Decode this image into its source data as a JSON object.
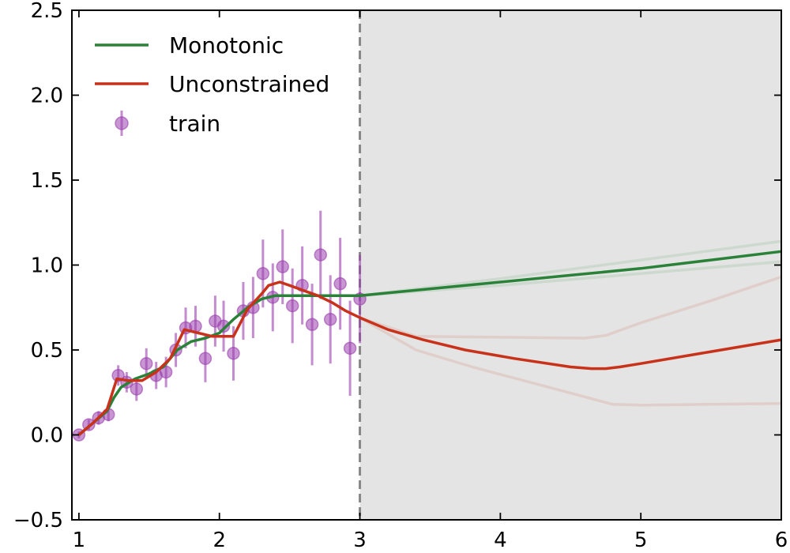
{
  "chart_data": {
    "type": "line",
    "xlim": [
      0.95,
      6.0
    ],
    "ylim": [
      -0.5,
      2.5
    ],
    "xticks": [
      "1",
      "2",
      "3",
      "4",
      "5",
      "6"
    ],
    "yticks": [
      "−0.5",
      "0.0",
      "0.5",
      "1.0",
      "1.5",
      "2.0",
      "2.5"
    ],
    "xtick_values": [
      1,
      2,
      3,
      4,
      5,
      6
    ],
    "ytick_values": [
      -0.5,
      0.0,
      0.5,
      1.0,
      1.5,
      2.0,
      2.5
    ],
    "training_boundary_x": 3.0,
    "extrapolation_shaded_region": [
      3.0,
      6.0
    ],
    "legend_placement": "top-left",
    "colors": {
      "monotonic": "#2a8138",
      "unconstrained": "#c9321a",
      "train": "#9b3fae",
      "shade": "#e4e4e4",
      "boundary": "#888888"
    },
    "series": [
      {
        "name": "Monotonic",
        "x": [
          1.0,
          1.1,
          1.2,
          1.25,
          1.3,
          1.4,
          1.5,
          1.6,
          1.7,
          1.8,
          1.9,
          2.0,
          2.1,
          2.2,
          2.3,
          2.4,
          2.5,
          2.6,
          2.7,
          2.8,
          2.9,
          3.0,
          3.5,
          4.0,
          4.5,
          5.0,
          5.5,
          6.0
        ],
        "y": [
          0.0,
          0.07,
          0.14,
          0.22,
          0.28,
          0.33,
          0.36,
          0.4,
          0.5,
          0.55,
          0.57,
          0.6,
          0.68,
          0.75,
          0.8,
          0.82,
          0.82,
          0.82,
          0.82,
          0.82,
          0.82,
          0.82,
          0.86,
          0.9,
          0.94,
          0.98,
          1.03,
          1.08
        ]
      },
      {
        "name": "Unconstrained",
        "x": [
          1.0,
          1.1,
          1.2,
          1.27,
          1.35,
          1.45,
          1.55,
          1.65,
          1.75,
          1.85,
          1.95,
          2.1,
          2.2,
          2.3,
          2.35,
          2.43,
          2.5,
          2.6,
          2.7,
          2.8,
          2.9,
          3.0,
          3.2,
          3.45,
          3.75,
          4.1,
          4.5,
          4.65,
          4.75,
          4.85,
          5.0,
          5.5,
          6.0
        ],
        "y": [
          0.0,
          0.07,
          0.15,
          0.33,
          0.32,
          0.32,
          0.37,
          0.45,
          0.62,
          0.6,
          0.58,
          0.58,
          0.74,
          0.83,
          0.88,
          0.9,
          0.88,
          0.85,
          0.82,
          0.78,
          0.73,
          0.69,
          0.62,
          0.56,
          0.5,
          0.45,
          0.4,
          0.39,
          0.39,
          0.4,
          0.42,
          0.49,
          0.56
        ]
      }
    ],
    "faint_series": [
      {
        "color": "#2a8138",
        "x": [
          3.0,
          4.0,
          5.0,
          6.0
        ],
        "y": [
          0.82,
          0.92,
          1.03,
          1.14
        ]
      },
      {
        "color": "#2a8138",
        "x": [
          3.0,
          4.0,
          5.0,
          6.0
        ],
        "y": [
          0.82,
          0.88,
          0.95,
          1.02
        ]
      },
      {
        "color": "#c9321a",
        "x": [
          3.0,
          3.4,
          4.0,
          4.6,
          4.75,
          5.0,
          5.5,
          6.0
        ],
        "y": [
          0.69,
          0.58,
          0.575,
          0.57,
          0.585,
          0.66,
          0.79,
          0.93
        ]
      },
      {
        "color": "#c9321a",
        "x": [
          3.0,
          3.4,
          3.8,
          4.3,
          4.8,
          5.0,
          5.5,
          6.0
        ],
        "y": [
          0.69,
          0.5,
          0.4,
          0.29,
          0.18,
          0.175,
          0.18,
          0.185
        ]
      }
    ],
    "train": {
      "name": "train",
      "x": [
        1.0,
        1.07,
        1.14,
        1.21,
        1.28,
        1.34,
        1.41,
        1.48,
        1.55,
        1.62,
        1.69,
        1.76,
        1.83,
        1.9,
        1.97,
        2.03,
        2.1,
        2.17,
        2.24,
        2.31,
        2.38,
        2.45,
        2.52,
        2.59,
        2.66,
        2.72,
        2.79,
        2.86,
        2.93,
        3.0
      ],
      "y": [
        0.0,
        0.06,
        0.1,
        0.12,
        0.35,
        0.31,
        0.27,
        0.42,
        0.35,
        0.37,
        0.5,
        0.63,
        0.64,
        0.45,
        0.67,
        0.64,
        0.48,
        0.73,
        0.75,
        0.95,
        0.81,
        0.99,
        0.76,
        0.88,
        0.65,
        1.06,
        0.68,
        0.89,
        0.51,
        0.8
      ],
      "yerr": [
        0.02,
        0.03,
        0.04,
        0.04,
        0.06,
        0.06,
        0.07,
        0.09,
        0.08,
        0.09,
        0.1,
        0.12,
        0.12,
        0.14,
        0.15,
        0.15,
        0.16,
        0.17,
        0.18,
        0.2,
        0.2,
        0.22,
        0.22,
        0.23,
        0.24,
        0.26,
        0.26,
        0.27,
        0.28,
        0.26
      ]
    }
  }
}
